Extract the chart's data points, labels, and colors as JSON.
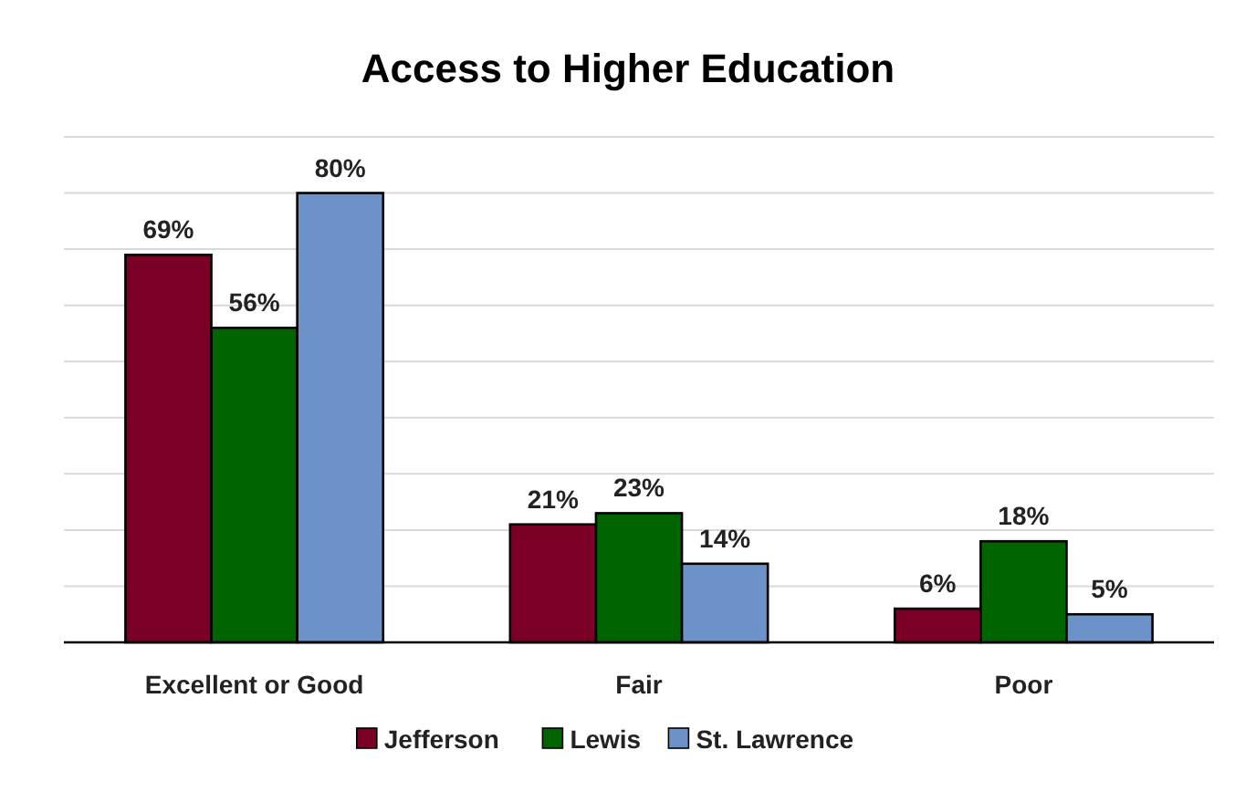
{
  "chart_data": {
    "type": "bar",
    "title": "Access to Higher Education",
    "categories": [
      "Excellent or Good",
      "Fair",
      "Poor"
    ],
    "series": [
      {
        "name": "Jefferson",
        "color": "#7b0025",
        "values": [
          69,
          21,
          6
        ],
        "value_labels": [
          "69%",
          "21%",
          "6%"
        ]
      },
      {
        "name": "Lewis",
        "color": "#006400",
        "values": [
          56,
          23,
          18
        ],
        "value_labels": [
          "56%",
          "23%",
          "18%"
        ]
      },
      {
        "name": "St. Lawrence",
        "color": "#6b93c9",
        "values": [
          80,
          14,
          5
        ],
        "value_labels": [
          "80%",
          "14%",
          "5%"
        ]
      }
    ],
    "ylim": [
      0,
      90
    ],
    "yticks": [
      {
        "value": 0,
        "label": null
      },
      {
        "value": 10,
        "label": null
      },
      {
        "value": 20,
        "label": null
      },
      {
        "value": 30,
        "label": null
      },
      {
        "value": 40,
        "label": null
      },
      {
        "value": 50,
        "label": null
      },
      {
        "value": 60,
        "label": null
      },
      {
        "value": 70,
        "label": null
      },
      {
        "value": 80,
        "label": null
      },
      {
        "value": 90,
        "label": null
      }
    ],
    "tick_labels": "x",
    "grid": "y",
    "legend": "bottom"
  }
}
